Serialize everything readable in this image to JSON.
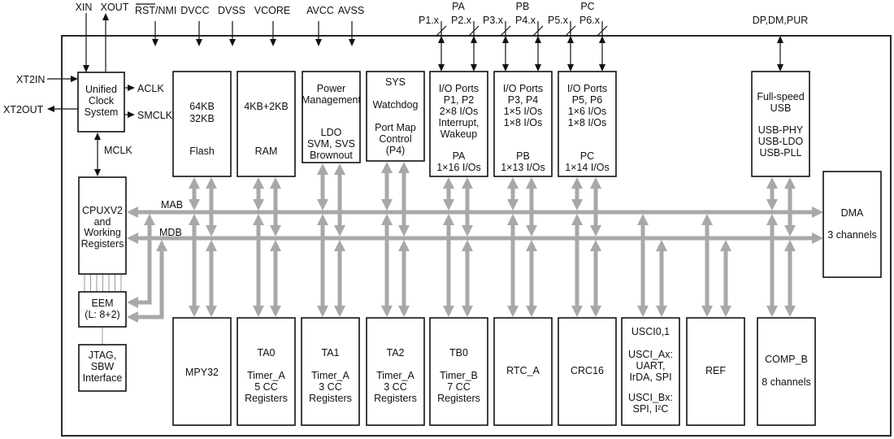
{
  "pins": {
    "xin": "XIN",
    "xout": "XOUT",
    "rst_nmi": "RST/NMI",
    "rst_overline": "RST",
    "dvcc": "DVCC",
    "dvss": "DVSS",
    "vcore": "VCORE",
    "avcc": "AVCC",
    "avss": "AVSS",
    "xt2in": "XT2IN",
    "xt2out": "XT2OUT",
    "aclk": "ACLK",
    "smclk": "SMCLK",
    "mclk": "MCLK",
    "pa": "PA",
    "pb": "PB",
    "pc": "PC",
    "p1": "P1.x",
    "p2": "P2.x",
    "p3": "P3.x",
    "p4": "P4.x",
    "p5": "P5.x",
    "p6": "P6.x",
    "usb": "DP,DM,PUR"
  },
  "buses": {
    "mab": "MAB",
    "mdb": "MDB"
  },
  "blocks": {
    "clock": [
      "Unified",
      "Clock",
      "System"
    ],
    "flash": [
      "64KB",
      "32KB",
      "Flash"
    ],
    "ram": [
      "4KB+2KB",
      "RAM"
    ],
    "power": [
      "Power",
      "Management",
      "LDO",
      "SVM, SVS",
      "Brownout"
    ],
    "sys": [
      "SYS",
      "Watchdog",
      "Port Map",
      "Control",
      "(P4)"
    ],
    "pa": [
      "I/O Ports",
      "P1, P2",
      "2×8 I/Os",
      "Interrupt,",
      "Wakeup",
      "PA",
      "1×16 I/Os"
    ],
    "pb": [
      "I/O Ports",
      "P3, P4",
      "1×5 I/Os",
      "1×8 I/Os",
      "PB",
      "1×13 I/Os"
    ],
    "pc": [
      "I/O Ports",
      "P5, P6",
      "1×6 I/Os",
      "1×8 I/Os",
      "PC",
      "1×14 I/Os"
    ],
    "usb": [
      "Full-speed",
      "USB",
      "USB-PHY",
      "USB-LDO",
      "USB-PLL"
    ],
    "dma": [
      "DMA",
      "3 channels"
    ],
    "cpu": [
      "CPUXV2",
      "and",
      "Working",
      "Registers"
    ],
    "eem": [
      "EEM",
      "(L: 8+2)"
    ],
    "jtag": [
      "JTAG,",
      "SBW",
      "Interface"
    ],
    "mpy": [
      "MPY32"
    ],
    "ta0": [
      "TA0",
      "Timer_A",
      "5 CC",
      "Registers"
    ],
    "ta1": [
      "TA1",
      "Timer_A",
      "3 CC",
      "Registers"
    ],
    "ta2": [
      "TA2",
      "Timer_A",
      "3 CC",
      "Registers"
    ],
    "tb0": [
      "TB0",
      "Timer_B",
      "7 CC",
      "Registers"
    ],
    "rtc": [
      "RTC_A"
    ],
    "crc": [
      "CRC16"
    ],
    "usci": [
      "USCI0,1",
      "USCI_Ax:",
      "UART,",
      "IrDA, SPI",
      "USCI_Bx:",
      "SPI, I²C"
    ],
    "ref": [
      "REF"
    ],
    "comp": [
      "COMP_B",
      "8 channels"
    ]
  },
  "colors": {
    "bus": "#a8a8a8",
    "line": "#111111"
  }
}
